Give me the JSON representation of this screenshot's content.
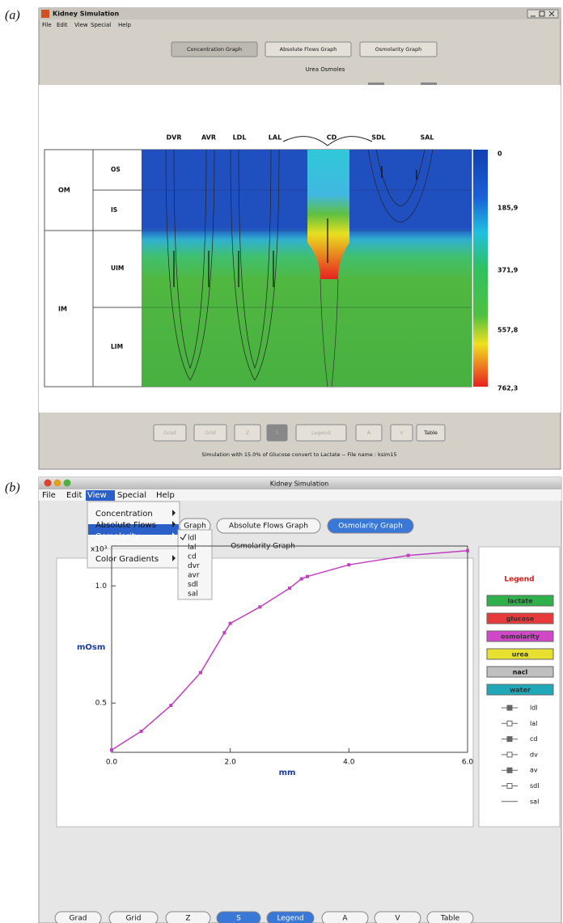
{
  "labels": {
    "a": "(a)",
    "b": "(b)"
  },
  "panel_a": {
    "window_title": "Kidney Simulation",
    "menu": [
      "File",
      "Edit",
      "View",
      "Special",
      "Help"
    ],
    "tabs": [
      "Concentration Graph",
      "Absolute Flows Graph",
      "Osmolarity Graph"
    ],
    "subtitle": "Urea Osmoles",
    "columns": [
      "DVR",
      "AVR",
      "LDL",
      "LAL",
      "CD",
      "SDL",
      "SAL"
    ],
    "zones": [
      "OM",
      "IM"
    ],
    "subzones": [
      "OS",
      "IS",
      "UIM",
      "LIM"
    ],
    "colorbar_labels": [
      "0",
      "185,9",
      "371,9",
      "557,8",
      "762,3"
    ],
    "buttons": [
      "Grad",
      "Grid",
      "Z",
      "S",
      "Legend",
      "A",
      "V",
      "Table"
    ],
    "status": "Simulation with 15.0% of Glucose convert to Lactate -- File name : ksim15"
  },
  "panel_b": {
    "window_title": "Kidney Simulation",
    "menu": [
      "File",
      "Edit",
      "View",
      "Special",
      "Help"
    ],
    "view_menu": [
      "Concentration",
      "Absolute Flows",
      "Osmolarity",
      "Color Gradients"
    ],
    "osmolarity_submenu": [
      "ldl",
      "lal",
      "cd",
      "dvr",
      "avr",
      "sdl",
      "sal"
    ],
    "tabs": [
      "Graph",
      "Absolute Flows Graph",
      "Osmolarity Graph"
    ],
    "graph_title": "Osmolarity Graph",
    "legend": {
      "title": "Legend",
      "solutes": [
        "lactate",
        "glucose",
        "osmolarity",
        "urea",
        "nacl",
        "water"
      ],
      "solute_colors": [
        "#2fb04a",
        "#e83a3a",
        "#d048c8",
        "#e8e030",
        "#bfbfbf",
        "#20a8b8"
      ],
      "lines": [
        "ldl",
        "lal",
        "cd",
        "dv",
        "av",
        "sdl",
        "sal"
      ]
    },
    "buttons": [
      "Grad",
      "Grid",
      "Z",
      "S",
      "Legend",
      "A",
      "V",
      "Table"
    ],
    "chart_data": {
      "type": "line",
      "x_label": "mm",
      "y_label": "mOsm",
      "y_multiplier": "x10³",
      "x": [
        0,
        0.5,
        1,
        1.5,
        1.9,
        2,
        2.5,
        3,
        3.2,
        3.3,
        4,
        5,
        6
      ],
      "values": [
        0.3,
        0.38,
        0.49,
        0.63,
        0.8,
        0.84,
        0.91,
        0.99,
        1.03,
        1.04,
        1.09,
        1.13,
        1.15
      ],
      "color": "#c040c0",
      "xlim": [
        0,
        6
      ],
      "ylim": [
        0.29,
        1.17
      ],
      "xticks": [
        {
          "value": 0,
          "label": "0.0"
        },
        {
          "value": 2,
          "label": "2.0"
        },
        {
          "value": 4,
          "label": "4.0"
        },
        {
          "value": 6,
          "label": "6.0"
        }
      ],
      "yticks": [
        0.5,
        {
          "value": 1,
          "label": "1.0"
        }
      ]
    }
  }
}
